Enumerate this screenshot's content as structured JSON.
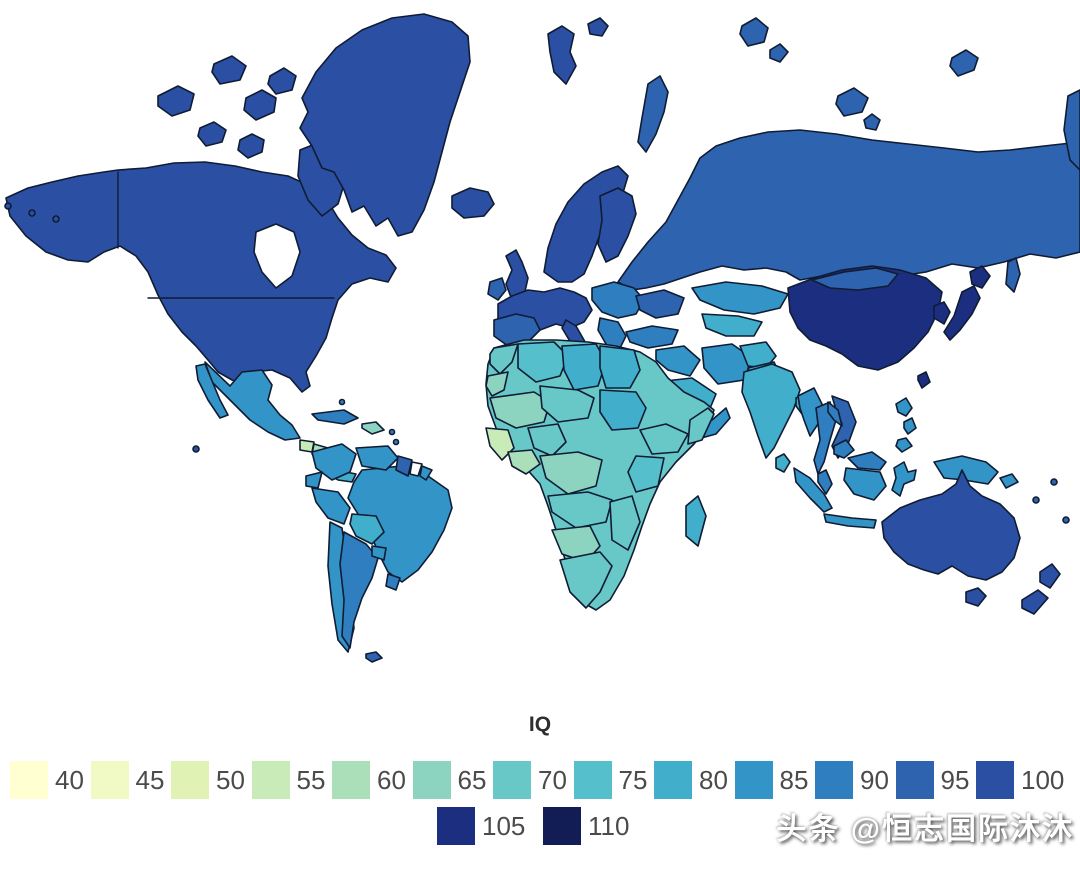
{
  "title": "IQ",
  "watermark": "头条 @恒志国际沐沐",
  "chart_data": {
    "type": "choropleth_map",
    "title": "IQ",
    "bins": [
      "40",
      "45",
      "50",
      "55",
      "60",
      "65",
      "70",
      "75",
      "80",
      "85",
      "90",
      "95",
      "100",
      "105",
      "110"
    ],
    "legend_rows": [
      [
        "40",
        "45",
        "50",
        "55",
        "60",
        "65",
        "70",
        "75",
        "80",
        "85",
        "90",
        "95",
        "100"
      ],
      [
        "105",
        "110"
      ]
    ],
    "colors": {
      "40": "#ffffd2",
      "45": "#f1f9c5",
      "50": "#e0f3b4",
      "55": "#c9ebb7",
      "60": "#abdfba",
      "65": "#8cd4bf",
      "70": "#68c8c8",
      "75": "#55bfcb",
      "80": "#41afcb",
      "85": "#3394c7",
      "90": "#2f7fc0",
      "95": "#2e63af",
      "100": "#2a4fa3",
      "105": "#1c2e7f",
      "110": "#121c55"
    },
    "no_data_color": "#ffffff",
    "regions": {
      "canada-usa": 100,
      "baffin-island": 100,
      "arctic-island": 100,
      "greenland": 100,
      "iceland": 100,
      "mexico": 85,
      "baja-california": 85,
      "guatemala": 55,
      "honduras": 60,
      "nicaragua": 80,
      "panama-costa-rica": 80,
      "cuba": 90,
      "hispaniola": 65,
      "caribbean-islands": 90,
      "colombia": 85,
      "venezuela": 85,
      "guyana": 95,
      "suriname": "none",
      "french-guiana": 85,
      "ecuador": 85,
      "peru": 85,
      "brazil": 85,
      "bolivia": 80,
      "paraguay": 85,
      "chile": 85,
      "argentina": 90,
      "uruguay": 90,
      "falkland-islands": 95,
      "uk": 100,
      "ireland": 95,
      "scandinavia": 100,
      "finland": 100,
      "europe-core": 100,
      "spain-portugal": 95,
      "italy": 100,
      "eastern-europe": 90,
      "balkans": 90,
      "ukraine": 95,
      "russia": 95,
      "svalbard": 100,
      "turkey": 90,
      "iraq-syria": 85,
      "iran": 85,
      "afghanistan": 80,
      "pakistan": 80,
      "saudi-arabia": 80,
      "yemen-oman": 85,
      "kazakhstan": 85,
      "central-asia": 80,
      "india": 80,
      "sri-lanka": 80,
      "bangladesh": 80,
      "china": 105,
      "mongolia": 95,
      "korea": 105,
      "japan": 105,
      "taiwan": 105,
      "myanmar": 85,
      "thailand": 90,
      "vietnam": 95,
      "laos": 90,
      "cambodia": 90,
      "malaysia": 90,
      "indonesia": 85,
      "philippines": 85,
      "papua-new-guinea": 85,
      "australia": 100,
      "new-zealand": 100,
      "pacific-islands": 95,
      "africa-base": 70,
      "morocco": 70,
      "western-sahara": 65,
      "mauritania-mali": 65,
      "senegal-guinea": 55,
      "west-africa-coast": 60,
      "algeria": 75,
      "libya": 80,
      "egypt": 80,
      "niger-chad": 70,
      "sudan": 80,
      "nigeria": 70,
      "ethiopia": 70,
      "somalia": 70,
      "congo-basin": 65,
      "kenya-tanzania": 75,
      "angola-zambia": 70,
      "zimbabwe-mozambique": 70,
      "namibia-botswana": 65,
      "south-africa": 70,
      "madagascar": 80
    }
  },
  "style": {
    "border_color": "#101c33",
    "background": "#ffffff",
    "label_color": "#4b4b4b",
    "title_color": "#2e2e2e"
  }
}
